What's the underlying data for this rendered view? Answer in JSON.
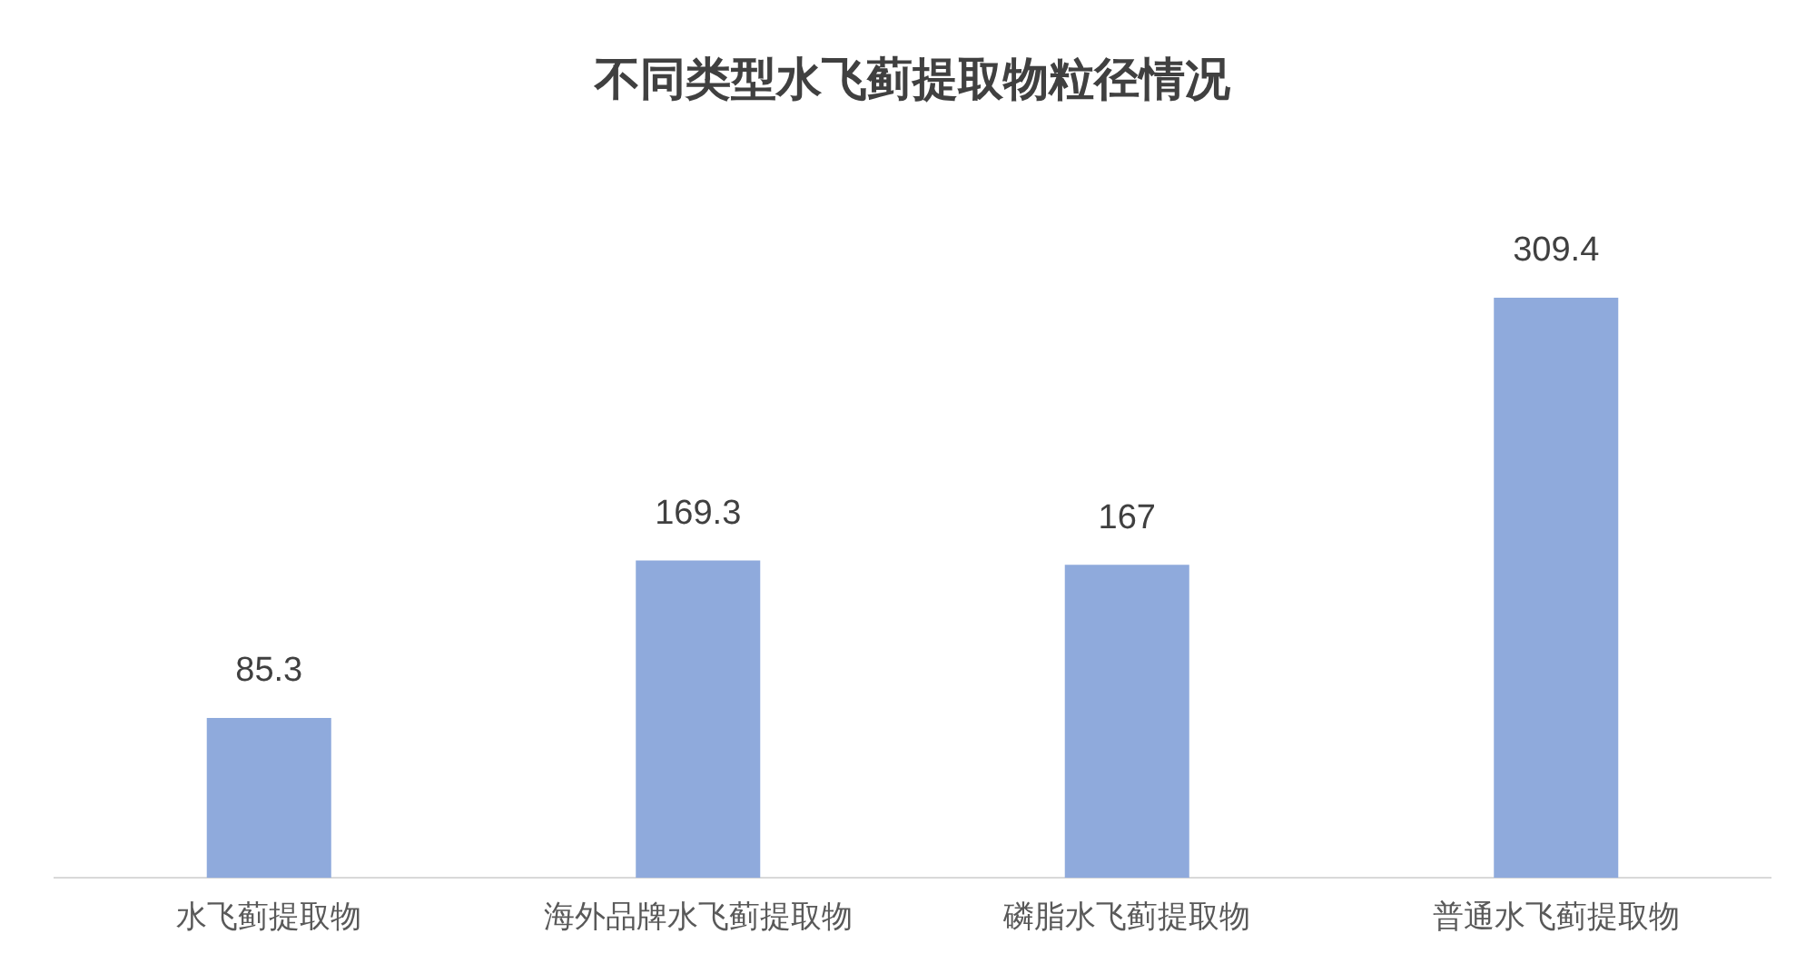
{
  "chart_data": {
    "type": "bar",
    "title": "不同类型水飞蓟提取物粒径情况",
    "categories": [
      "水飞蓟提取物",
      "海外品牌水飞蓟提取物",
      "磷脂水飞蓟提取物",
      "普通水飞蓟提取物"
    ],
    "values": [
      85.3,
      169.3,
      167,
      309.4
    ],
    "color": "#8faadc",
    "data_labels": true,
    "grid": false,
    "legend": false
  }
}
